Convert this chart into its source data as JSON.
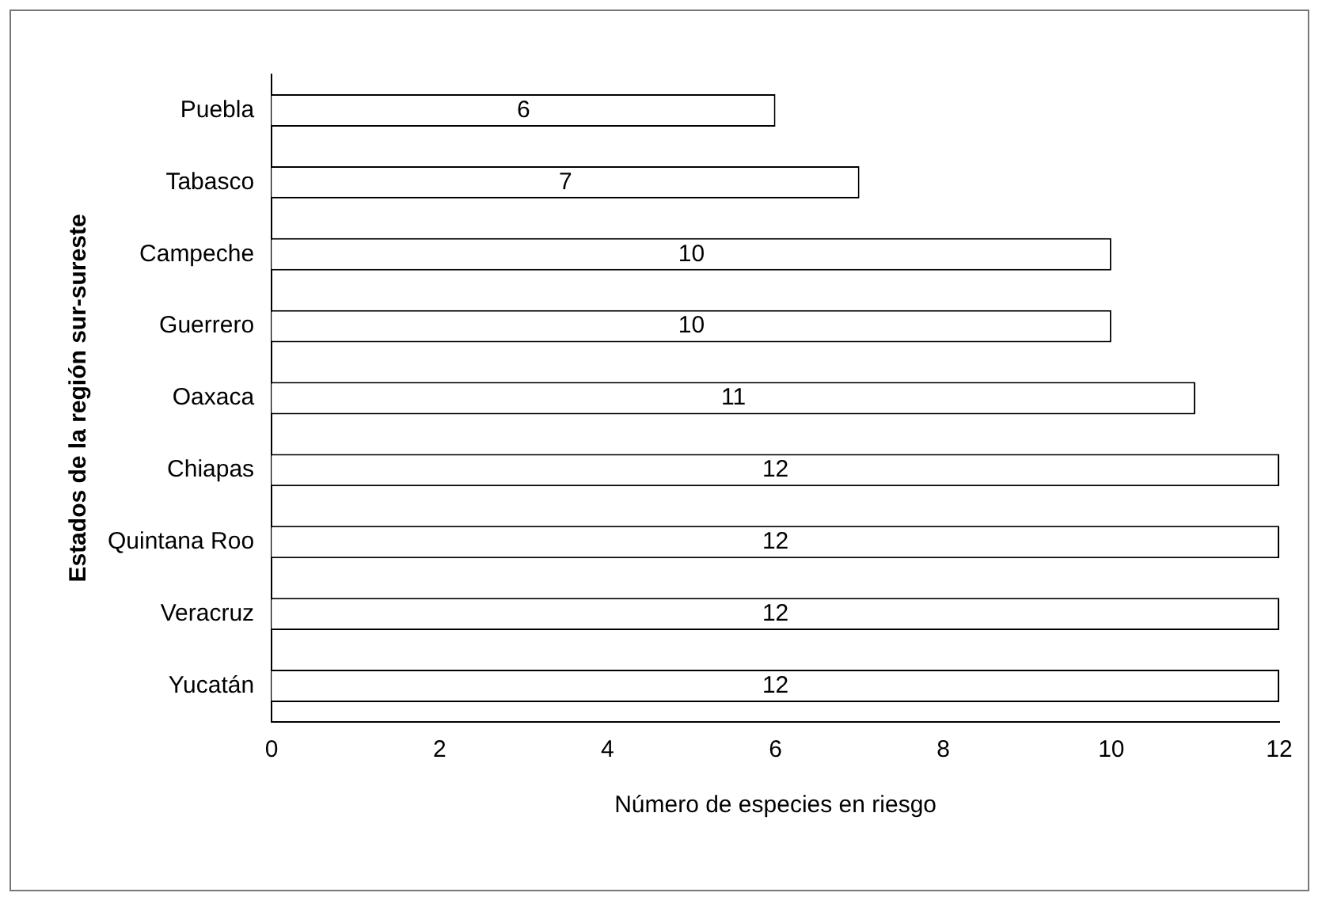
{
  "chart_data": {
    "type": "bar",
    "orientation": "horizontal",
    "xlabel": "Número de especies en riesgo",
    "ylabel": "Estados de la región sur-sureste",
    "categories": [
      "Puebla",
      "Tabasco",
      "Campeche",
      "Guerrero",
      "Oaxaca",
      "Chiapas",
      "Quintana Roo",
      "Veracruz",
      "Yucatán"
    ],
    "values": [
      6,
      7,
      10,
      10,
      11,
      12,
      12,
      12,
      12
    ],
    "color": "#ffffff",
    "xlim": [
      0,
      12
    ],
    "xticks": [
      0,
      2,
      4,
      6,
      8,
      10,
      12
    ],
    "data_labels": true,
    "grid": false,
    "legend": false
  }
}
